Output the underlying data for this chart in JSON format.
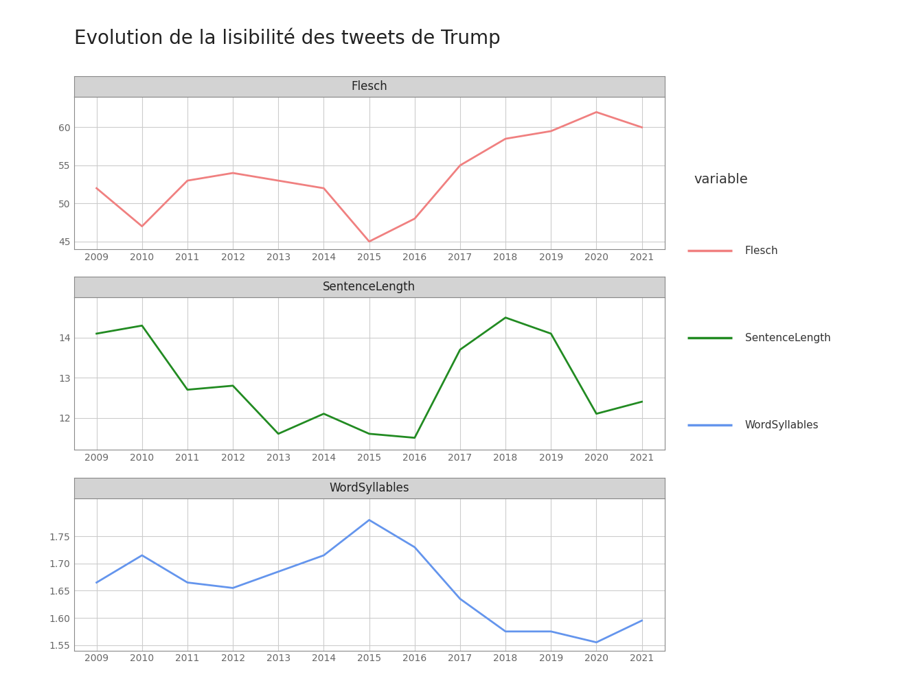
{
  "title": "Evolution de la lisibilité des tweets de Trump",
  "years": [
    2009,
    2010,
    2011,
    2012,
    2013,
    2014,
    2015,
    2016,
    2017,
    2018,
    2019,
    2020,
    2021
  ],
  "flesch": [
    52.0,
    47.0,
    53.0,
    54.0,
    53.0,
    52.0,
    45.0,
    48.0,
    55.0,
    58.5,
    59.5,
    62.0,
    60.0
  ],
  "sentence_length": [
    14.1,
    14.3,
    12.7,
    12.8,
    11.6,
    12.1,
    11.6,
    11.5,
    13.7,
    14.5,
    14.1,
    12.1,
    12.4
  ],
  "word_syllables": [
    1.665,
    1.715,
    1.665,
    1.655,
    1.685,
    1.715,
    1.78,
    1.73,
    1.635,
    1.575,
    1.575,
    1.555,
    1.595
  ],
  "flesch_color": "#F08080",
  "sentence_color": "#228B22",
  "syllables_color": "#6495ED",
  "strip_bg": "#D3D3D3",
  "plot_bg": "#FFFFFF",
  "panel_bg": "#FFFFFF",
  "grid_color": "#CCCCCC",
  "border_color": "#888888",
  "title_fontsize": 20,
  "strip_fontsize": 12,
  "tick_fontsize": 10,
  "legend_title": "variable",
  "legend_labels": [
    "Flesch",
    "SentenceLength",
    "WordSyllables"
  ],
  "flesch_ylim": [
    44,
    64
  ],
  "flesch_yticks": [
    45,
    50,
    55,
    60
  ],
  "sentence_ylim": [
    11.2,
    15.0
  ],
  "sentence_yticks": [
    12,
    13,
    14
  ],
  "syllables_ylim": [
    1.54,
    1.82
  ],
  "syllables_yticks": [
    1.55,
    1.6,
    1.65,
    1.7,
    1.75
  ]
}
